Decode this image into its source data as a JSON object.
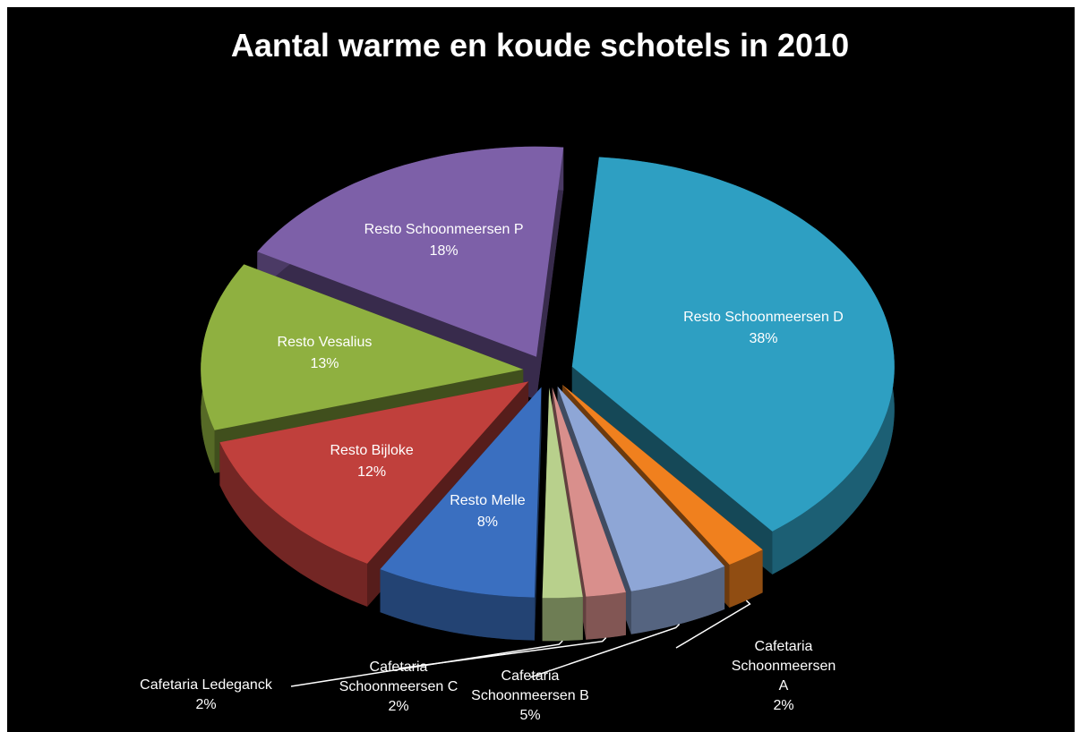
{
  "chart_data": {
    "type": "pie",
    "title": "Aantal warme en koude schotels in 2010",
    "categories": [
      "Resto Schoonmeersen P",
      "Resto Schoonmeersen D",
      "Cafetaria Schoonmeersen A",
      "Cafetaria Schoonmeersen B",
      "Cafetaria Schoonmeersen C",
      "Cafetaria Ledeganck",
      "Resto Melle",
      "Resto Bijloke",
      "Resto Vesalius"
    ],
    "values": [
      18,
      38,
      2,
      5,
      2,
      2,
      8,
      12,
      13
    ],
    "value_labels": [
      "18%",
      "38%",
      "2%",
      "5%",
      "2%",
      "2%",
      "8%",
      "12%",
      "13%"
    ],
    "colors": [
      "#7d60a8",
      "#2e9fc2",
      "#f0801e",
      "#8ea6d6",
      "#d98f8c",
      "#b8d08c",
      "#3a6fc0",
      "#c0403c",
      "#8fb040"
    ]
  }
}
